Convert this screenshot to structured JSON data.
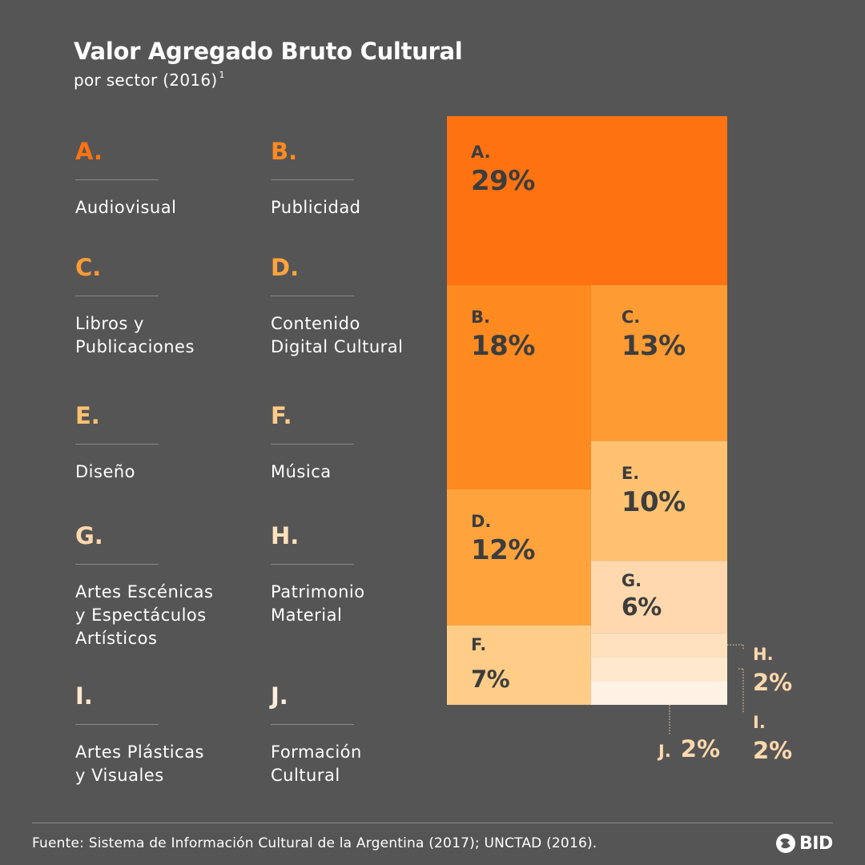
{
  "header": {
    "title": "Valor Agregado Bruto Cultural",
    "subtitle": "por sector (2016)",
    "footnote_mark": "1"
  },
  "legend": [
    {
      "letter": "A.",
      "label_lines": [
        "Audiovisual"
      ],
      "color": "#ff7211"
    },
    {
      "letter": "B.",
      "label_lines": [
        "Publicidad"
      ],
      "color": "#fe8a20"
    },
    {
      "letter": "C.",
      "label_lines": [
        "Libros y",
        "Publicaciones"
      ],
      "color": "#ff9b33"
    },
    {
      "letter": "D.",
      "label_lines": [
        "Contenido",
        "Digital Cultural"
      ],
      "color": "#ffa43c"
    },
    {
      "letter": "E.",
      "label_lines": [
        "Diseño"
      ],
      "color": "#ffc271"
    },
    {
      "letter": "F.",
      "label_lines": [
        "Música"
      ],
      "color": "#ffcd88"
    },
    {
      "letter": "G.",
      "label_lines": [
        "Artes Escénicas",
        "y Espectáculos",
        "Artísticos"
      ],
      "color": "#ffd9ad"
    },
    {
      "letter": "H.",
      "label_lines": [
        "Patrimonio",
        "Material"
      ],
      "color": "#ffe1bd"
    },
    {
      "letter": "I.",
      "label_lines": [
        "Artes Plásticas",
        "y Visuales"
      ],
      "color": "#ffe8ce"
    },
    {
      "letter": "J.",
      "label_lines": [
        "Formación",
        "Cultural"
      ],
      "color": "#ffeedd"
    }
  ],
  "chart_data": {
    "type": "treemap",
    "title": "Valor Agregado Bruto Cultural",
    "subtitle": "por sector (2016)",
    "unit": "%",
    "items": [
      {
        "id": "A",
        "letter": "A.",
        "name": "Audiovisual",
        "value": 29,
        "label": "29%",
        "color": "#ff7211"
      },
      {
        "id": "B",
        "letter": "B.",
        "name": "Publicidad",
        "value": 18,
        "label": "18%",
        "color": "#fe8a20"
      },
      {
        "id": "C",
        "letter": "C.",
        "name": "Libros y Publicaciones",
        "value": 13,
        "label": "13%",
        "color": "#ff9b33"
      },
      {
        "id": "D",
        "letter": "D.",
        "name": "Contenido Digital Cultural",
        "value": 12,
        "label": "12%",
        "color": "#ffa43c"
      },
      {
        "id": "E",
        "letter": "E.",
        "name": "Diseño",
        "value": 10,
        "label": "10%",
        "color": "#ffc271"
      },
      {
        "id": "F",
        "letter": "F.",
        "name": "Música",
        "value": 7,
        "label": "7%",
        "color": "#ffcd88"
      },
      {
        "id": "G",
        "letter": "G.",
        "name": "Artes Escénicas y Espectáculos Artísticos",
        "value": 6,
        "label": "6%",
        "color": "#ffd9ad"
      },
      {
        "id": "H",
        "letter": "H.",
        "name": "Patrimonio Material",
        "value": 2,
        "label": "2%",
        "color": "#ffe1bd"
      },
      {
        "id": "I",
        "letter": "I.",
        "name": "Artes Plásticas y Visuales",
        "value": 2,
        "label": "2%",
        "color": "#ffe8ce"
      },
      {
        "id": "J",
        "letter": "J.",
        "name": "Formación Cultural",
        "value": 2,
        "label": "2%",
        "color": "#fff3e6"
      }
    ]
  },
  "footer": {
    "source": "Fuente: Sistema de Información Cultural de la Argentina (2017); UNCTAD (2016).",
    "logo_text": "BID",
    "logo_icon": "bid-seal-icon"
  },
  "colors": {
    "background": "#555555",
    "dark_text": "#3d3d3d",
    "leader_line": "#ffd9ad"
  }
}
